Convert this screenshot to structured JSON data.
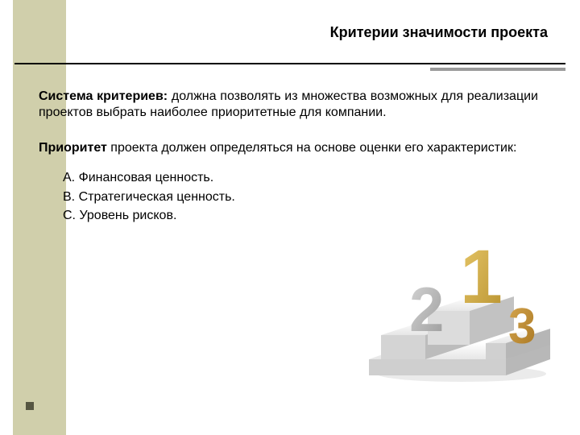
{
  "colors": {
    "sidebar": "#d0cfab",
    "accent_rule": "#9a9a9a",
    "bullet": "#565642",
    "text": "#000000",
    "podium_top": "#f6f6f6",
    "podium_side": "#cfcfcf",
    "num1_light": "#e8c86a",
    "num1_dark": "#b8922f",
    "num2_light": "#d7d7d7",
    "num2_dark": "#9a9a9a",
    "num3_light": "#d7a851",
    "num3_dark": "#a77520"
  },
  "layout": {
    "accent_rule_width": 168,
    "title_fontsize": 18,
    "body_fontsize": 16,
    "list_fontsize": 16
  },
  "title": "Критерии значимости проекта",
  "para1": {
    "bold": "Система критериев:",
    "rest": " должна позволять из множества возможных для реализации проектов выбрать наиболее приоритетные для компании."
  },
  "para2": {
    "bold": "Приоритет",
    "rest": " проекта должен определяться на основе оценки его характеристик:"
  },
  "list": {
    "a": "A. Финансовая ценность.",
    "b": "B. Стратегическая ценность.",
    "c": "C. Уровень рисков."
  }
}
